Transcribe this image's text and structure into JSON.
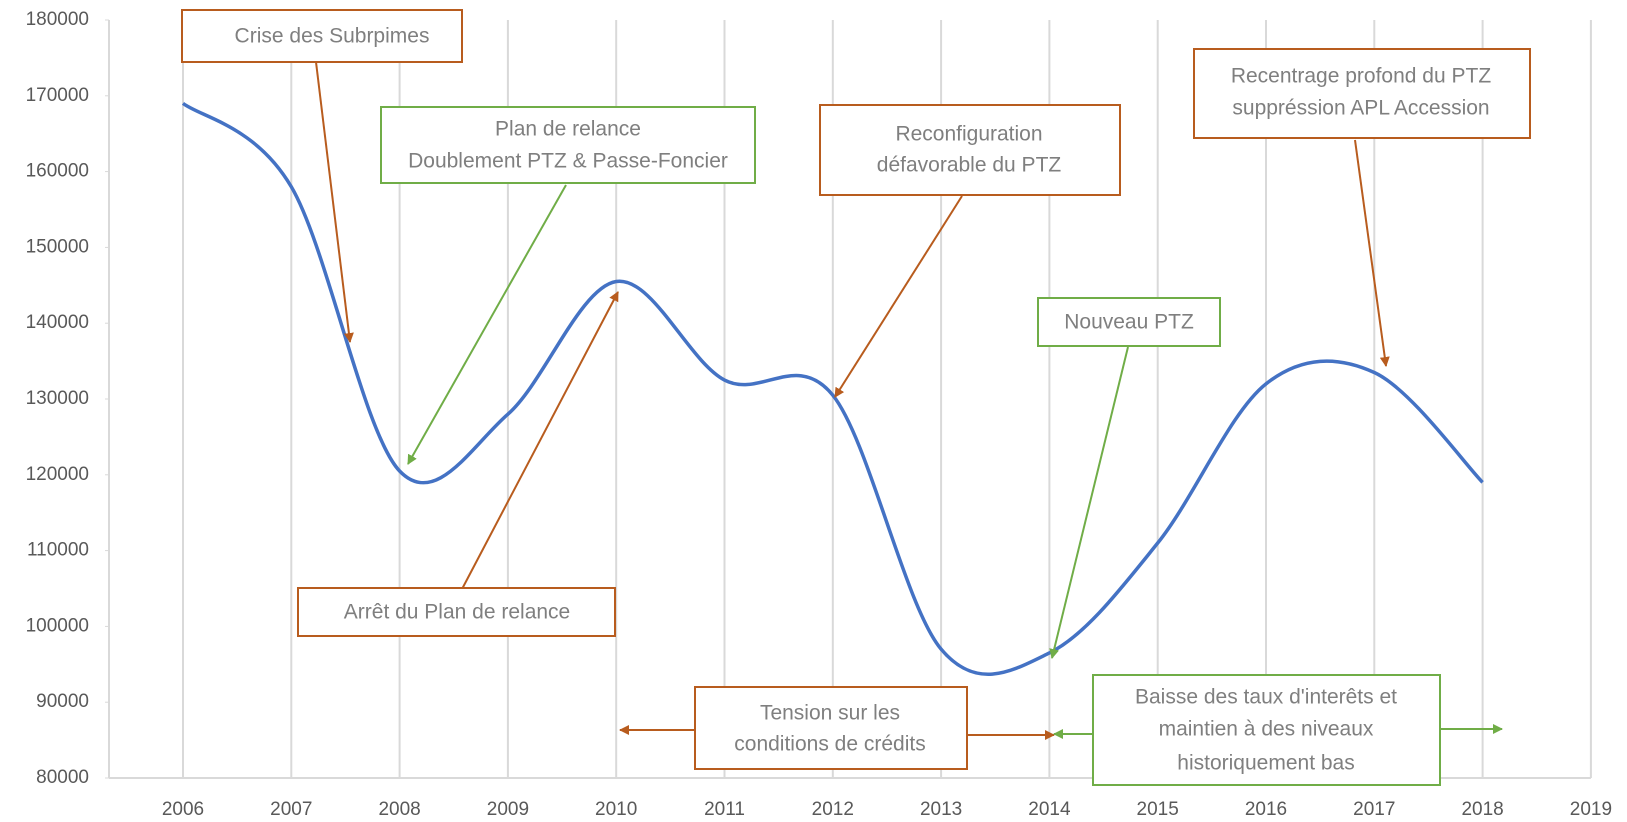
{
  "chart_data": {
    "type": "line",
    "smooth": true,
    "categories": [
      "2006",
      "2007",
      "2008",
      "2009",
      "2010",
      "2011",
      "2012",
      "2013",
      "2014",
      "2015",
      "2016",
      "2017",
      "2018",
      "2019"
    ],
    "values": [
      169000,
      158000,
      120500,
      128000,
      145500,
      132500,
      130500,
      97000,
      96500,
      111000,
      132000,
      133500,
      119000,
      null
    ],
    "color": "#4472c4",
    "ylim": [
      80000,
      180000
    ],
    "yticks": [
      80000,
      90000,
      100000,
      110000,
      120000,
      130000,
      140000,
      150000,
      160000,
      170000,
      180000
    ],
    "grid": true,
    "annotations": [
      {
        "lines": [
          "Crise des Subrpimes"
        ],
        "color": "#b85c1e"
      },
      {
        "lines": [
          "Plan de relance",
          "Doublement PTZ & Passe-Foncier"
        ],
        "color": "#70ad47"
      },
      {
        "lines": [
          "Reconfiguration",
          "défavorable du PTZ"
        ],
        "color": "#b85c1e"
      },
      {
        "lines": [
          "Recentrage profond  du PTZ",
          "suppréssion APL Accession"
        ],
        "color": "#b85c1e"
      },
      {
        "lines": [
          "Nouveau PTZ"
        ],
        "color": "#70ad47"
      },
      {
        "lines": [
          "Arrêt du Plan de relance"
        ],
        "color": "#b85c1e"
      },
      {
        "lines": [
          "Tension sur les",
          "conditions de crédits"
        ],
        "color": "#b85c1e"
      },
      {
        "lines": [
          "Baisse des taux d'interêts et",
          "maintien à des niveaux",
          "historiquement bas"
        ],
        "color": "#70ad47"
      }
    ]
  }
}
